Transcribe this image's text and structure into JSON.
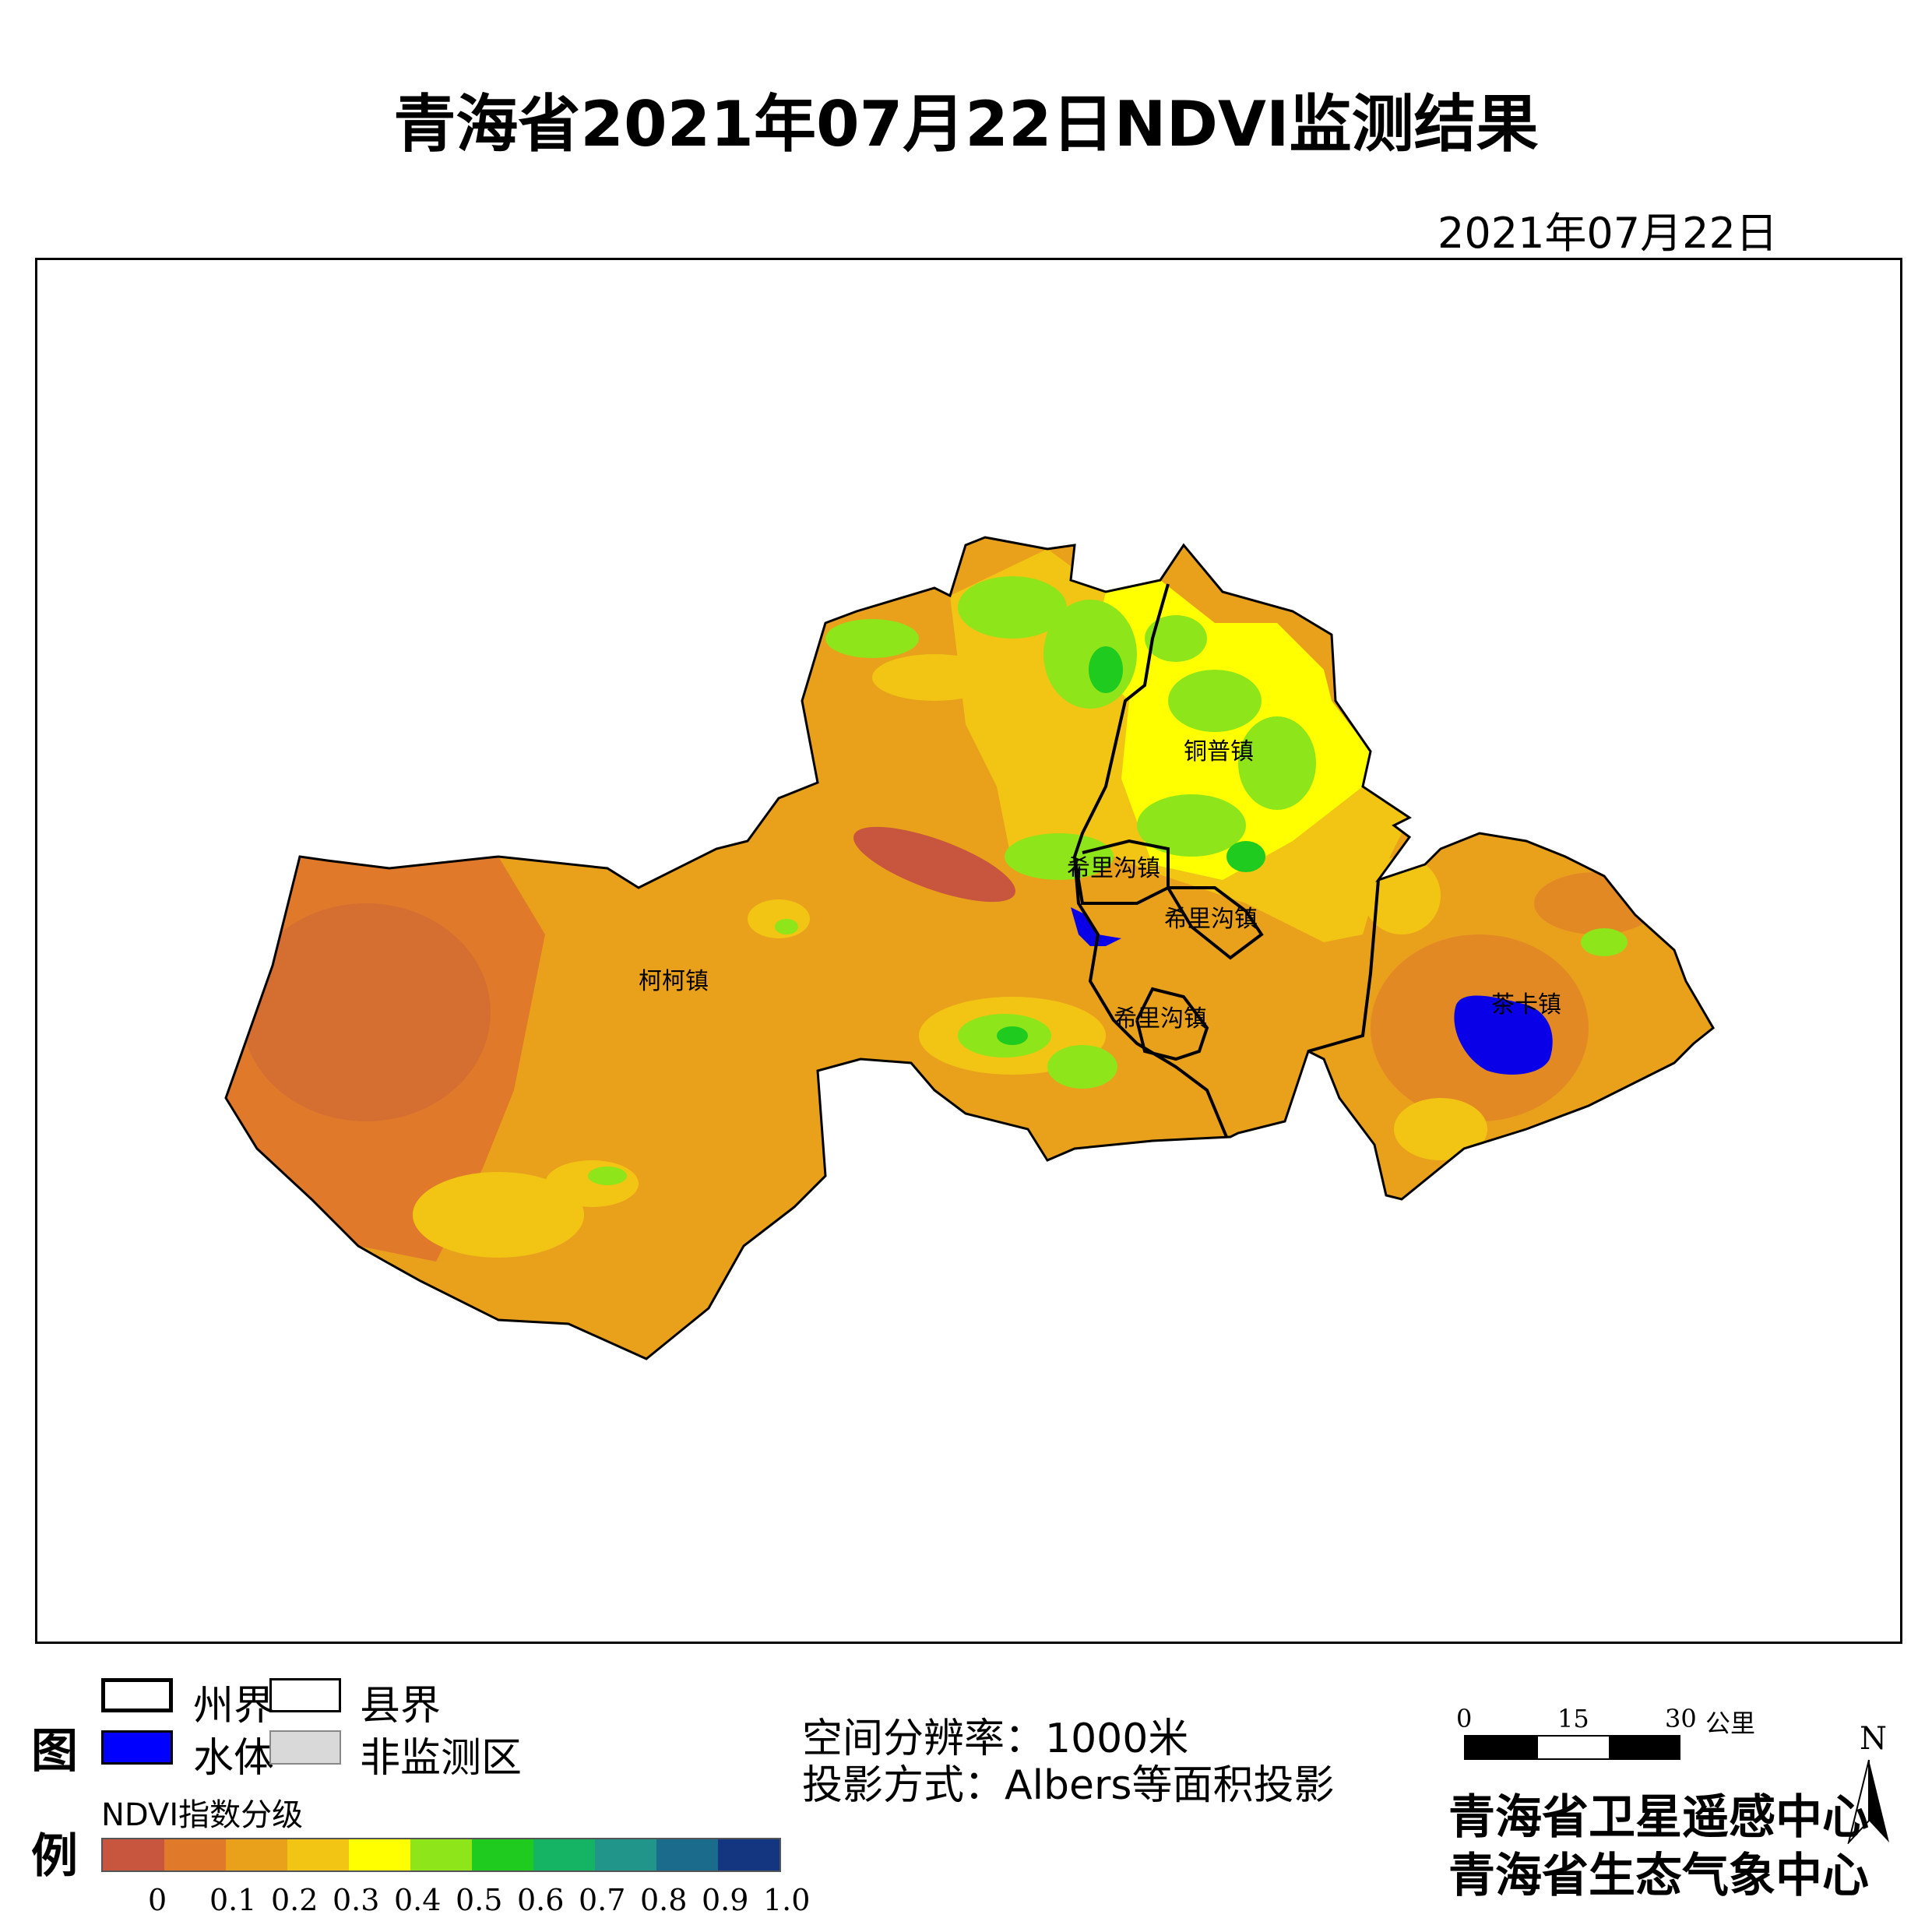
{
  "title": "青海省2021年07月22日NDVI监测结果",
  "date": "2021年07月22日",
  "map": {
    "place_labels": [
      "铜普镇",
      "希里沟镇",
      "希里沟镇",
      "柯柯镇",
      "希里沟镇",
      "茶卡镇"
    ],
    "colors": {
      "water": "#0a00e8",
      "boundary": "#000000"
    }
  },
  "legend": {
    "heading_chars": [
      "图",
      "例"
    ],
    "boundary_items": [
      {
        "label": "州界"
      },
      {
        "label": "县界"
      }
    ],
    "area_items": [
      {
        "label": "水体",
        "color": "#0000ff"
      },
      {
        "label": "非监测区",
        "color": "#d9d9d9"
      }
    ],
    "ndvi_title": "NDVI指数分级",
    "ndvi_colors": [
      "#c8553d",
      "#e07a2a",
      "#e9a11c",
      "#f2c514",
      "#ffff00",
      "#8ee51a",
      "#1ecb1e",
      "#14b464",
      "#21958a",
      "#1a6b8c",
      "#143580"
    ],
    "ndvi_ticks": [
      "0",
      "0.1",
      "0.2",
      "0.3",
      "0.4",
      "0.5",
      "0.6",
      "0.7",
      "0.8",
      "0.9",
      "1.0"
    ]
  },
  "info": {
    "resolution": "空间分辨率：1000米",
    "projection": "投影方式：Albers等面积投影"
  },
  "scalebar": {
    "labels": [
      "0",
      "15",
      "30"
    ],
    "unit": "公里"
  },
  "north": "N",
  "orgs": [
    "青海省卫星遥感中心",
    "青海省生态气象中心"
  ]
}
